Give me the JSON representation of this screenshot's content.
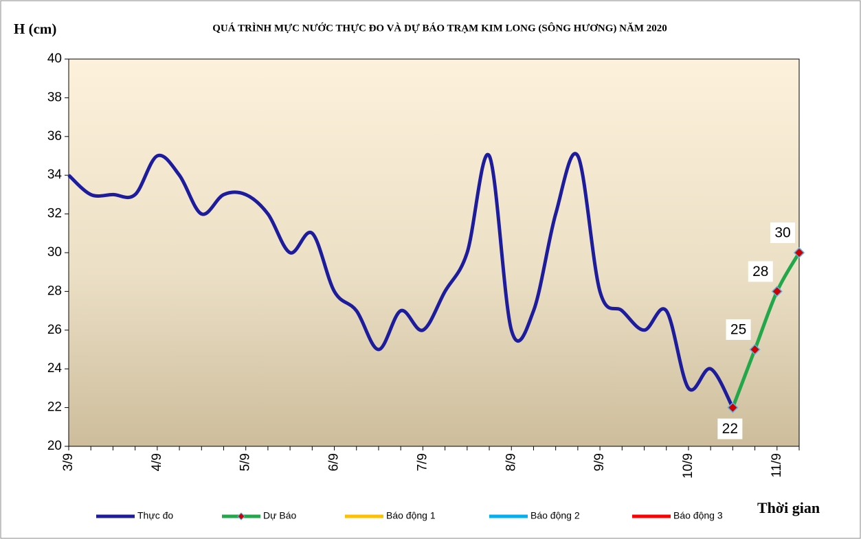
{
  "chart_data": {
    "type": "line",
    "title": "QUÁ TRÌNH MỰC NƯỚC THỰC ĐO VÀ DỰ BÁO TRẠM KIM LONG (SÔNG HƯƠNG) NĂM  2020",
    "y_label": "H (cm)",
    "x_label": "Thời gian",
    "categories": [
      "3/9",
      null,
      null,
      null,
      "4/9",
      null,
      null,
      null,
      "5/9",
      null,
      null,
      null,
      "6/9",
      null,
      null,
      null,
      "7/9",
      null,
      null,
      null,
      "8/9",
      null,
      null,
      null,
      "9/9",
      null,
      null,
      null,
      "10/9",
      null,
      null,
      null,
      "11/9",
      null
    ],
    "series": [
      {
        "name": "Thực đo",
        "color": "#1c1c9c",
        "values": [
          34,
          33,
          33,
          33,
          35,
          34,
          32,
          33,
          33,
          32,
          30,
          31,
          28,
          27,
          25,
          27,
          26,
          28,
          30,
          35,
          26,
          27,
          32,
          35,
          28,
          27,
          26,
          27,
          23,
          24,
          22,
          null,
          null,
          null
        ]
      },
      {
        "name": "Dự Báo",
        "color": "#22a84a",
        "marker_color": "#cc0000",
        "marker_edge": "#5ab4e6",
        "data_labels": true,
        "values": [
          null,
          null,
          null,
          null,
          null,
          null,
          null,
          null,
          null,
          null,
          null,
          null,
          null,
          null,
          null,
          null,
          null,
          null,
          null,
          null,
          null,
          null,
          null,
          null,
          null,
          null,
          null,
          null,
          null,
          null,
          22,
          25,
          28,
          30
        ]
      },
      {
        "name": "Báo động 1",
        "color": "#ffc000"
      },
      {
        "name": "Báo động 2",
        "color": "#00b0f0"
      },
      {
        "name": "Báo động 3",
        "color": "#ff0000"
      }
    ],
    "ylim": [
      20,
      40
    ],
    "yticks": [
      20,
      22,
      24,
      26,
      28,
      30,
      32,
      34,
      36,
      38,
      40
    ]
  }
}
